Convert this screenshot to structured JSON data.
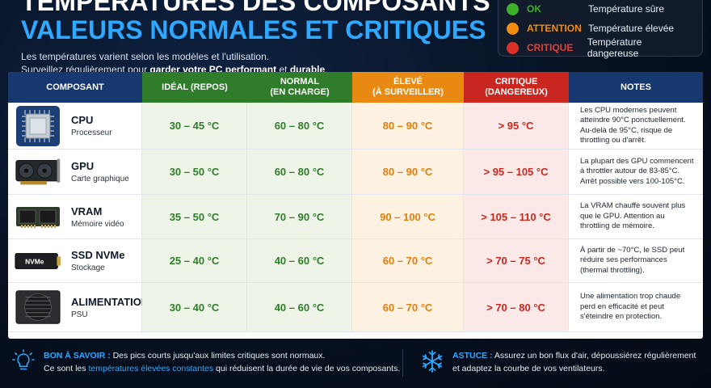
{
  "header": {
    "title_line1": "TEMPÉRATURES DES COMPOSANTS PC :",
    "title_line2": "VALEURS NORMALES ET CRITIQUES",
    "subtitle_line1": "Les températures varient selon les modèles et l'utilisation.",
    "subtitle_line2_a": "Surveillez régulièrement pour ",
    "subtitle_line2_b": "garder votre PC performant",
    "subtitle_line2_c": " et ",
    "subtitle_line2_d": "durable",
    "subtitle_line2_e": "."
  },
  "legend": [
    {
      "key": "OK",
      "desc": "Température sûre",
      "color": "#3fae2a"
    },
    {
      "key": "ATTENTION",
      "desc": "Température élevée",
      "color": "#f08c10"
    },
    {
      "key": "CRITIQUE",
      "desc": "Température dangereuse",
      "color": "#d9302a"
    }
  ],
  "table": {
    "headers": {
      "comp": "COMPOSANT",
      "ideal": "IDÉAL (REPOS)",
      "normal_1": "NORMAL",
      "normal_2": "(EN CHARGE)",
      "eleve_1": "ÉLEVÉ",
      "eleve_2": "(À SURVEILLER)",
      "crit_1": "CRITIQUE",
      "crit_2": "(DANGEREUX)",
      "notes": "NOTES"
    },
    "rows": [
      {
        "name": "CPU",
        "sub": "Processeur",
        "icon": "cpu-icon",
        "ideal": "30 – 45 °C",
        "normal": "60 – 80 °C",
        "eleve": "80 – 90 °C",
        "crit": "> 95 °C",
        "notes": [
          "Les CPU modernes peuvent",
          "atteindre 90°C ponctuellement.",
          "Au-delà de 95°C, risque de",
          "throttling ou d'arrêt."
        ]
      },
      {
        "name": "GPU",
        "sub": "Carte graphique",
        "icon": "gpu-icon",
        "ideal": "30 – 50 °C",
        "normal": "60 – 80 °C",
        "eleve": "80 – 90 °C",
        "crit": "> 95 – 105 °C",
        "notes": [
          "La plupart des GPU commencent",
          "à throttler autour de 83-85°C.",
          "Arrêt possible vers 100-105°C."
        ]
      },
      {
        "name": "VRAM",
        "sub": "Mémoire vidéo",
        "icon": "vram-icon",
        "ideal": "35 – 50 °C",
        "normal": "70 – 90 °C",
        "eleve": "90 – 100 °C",
        "crit": "> 105 – 110 °C",
        "notes": [
          "La VRAM chauffe souvent plus",
          "que le GPU. Attention au",
          "throttling de mémoire."
        ]
      },
      {
        "name": "SSD NVMe",
        "sub": "Stockage",
        "icon": "ssd-icon",
        "ssd_label": "NVMe",
        "ideal": "25 – 40 °C",
        "normal": "40 – 60 °C",
        "eleve": "60 – 70 °C",
        "crit": "> 70 – 75 °C",
        "notes": [
          "À partir de ~70°C, le SSD peut",
          "réduire ses performances",
          "(thermal throttling)."
        ]
      },
      {
        "name": "ALIMENTATION",
        "sub": "PSU",
        "icon": "psu-icon",
        "ideal": "30 – 40 °C",
        "normal": "40 – 60 °C",
        "eleve": "60 – 70 °C",
        "crit": "> 70 – 80 °C",
        "notes": [
          "Une alimentation trop chaude",
          "perd en efficacité et peut",
          "s'éteindre en protection."
        ]
      }
    ]
  },
  "footer": {
    "tip1_key": "BON À SAVOIR :",
    "tip1_a": " Des pics courts jusqu'aux limites critiques sont normaux.",
    "tip1_b": "Ce sont les ",
    "tip1_hl": "températures élevées constantes",
    "tip1_c": " qui réduisent la durée de vie de vos composants.",
    "tip2_key": "ASTUCE :",
    "tip2_a": " Assurez un bon flux d'air, dépoussiérez régulièrement",
    "tip2_b": "et adaptez la courbe de vos ventilateurs."
  }
}
